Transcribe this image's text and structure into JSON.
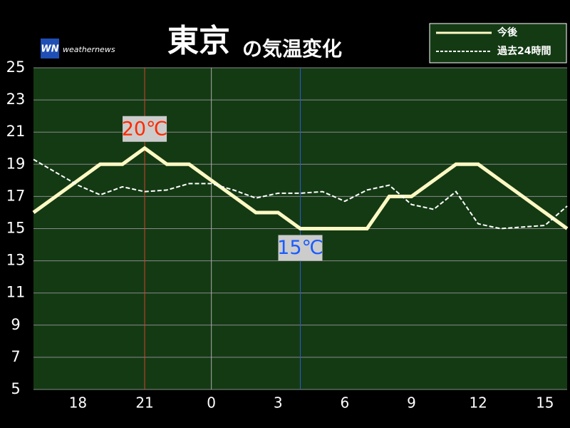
{
  "chart_data": {
    "type": "line",
    "title": "東京",
    "subtitle": "の気温変化",
    "brand": "weathernews",
    "brand_logo": "WN",
    "categories": [
      null,
      null,
      "18",
      null,
      null,
      "21",
      null,
      null,
      "0",
      null,
      null,
      "3",
      null,
      null,
      "6",
      null,
      null,
      "9",
      null,
      null,
      "12",
      null,
      null,
      "15",
      null
    ],
    "series": [
      {
        "name": "今後",
        "color": "#fff9c4",
        "values": [
          16,
          17,
          18,
          19,
          19,
          20,
          19,
          19,
          18,
          17,
          16,
          16,
          15,
          15,
          15,
          15,
          17,
          17,
          18,
          19,
          19,
          18,
          17,
          16,
          15
        ]
      },
      {
        "name": "過去24時間",
        "color": "#ffffff",
        "values": [
          19.3,
          18.5,
          17.7,
          17.1,
          17.6,
          17.3,
          17.4,
          17.8,
          17.8,
          17.4,
          16.9,
          17.2,
          17.2,
          17.3,
          16.7,
          17.4,
          17.7,
          16.5,
          16.2,
          17.3,
          15.3,
          15.0,
          15.1,
          15.2,
          16.4
        ]
      }
    ],
    "ylim": [
      5,
      25
    ],
    "yticks": [
      5,
      7,
      9,
      11,
      13,
      15,
      17,
      19,
      21,
      23,
      25
    ],
    "grid": true,
    "annotations": [
      {
        "label": "20℃",
        "value": 20,
        "color": "#ff2a00"
      },
      {
        "label": "15℃",
        "value": 15,
        "color": "#1a5cff"
      }
    ]
  }
}
